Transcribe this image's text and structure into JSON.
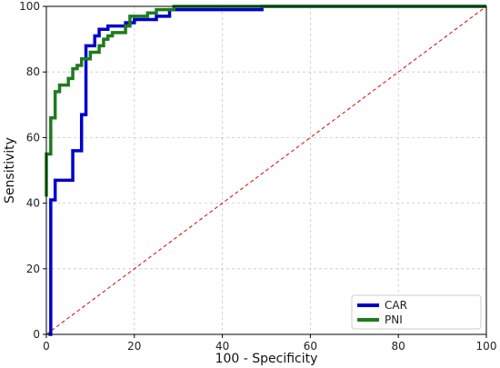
{
  "chart_data": {
    "type": "line",
    "title": "",
    "xlabel": "100 - Specificity",
    "ylabel": "Sensitivity",
    "xlim": [
      0,
      100
    ],
    "ylim": [
      0,
      100
    ],
    "xticks": [
      0,
      20,
      40,
      60,
      80,
      100
    ],
    "yticks": [
      0,
      20,
      40,
      60,
      80,
      100
    ],
    "grid": true,
    "legend_position": "bottom-right",
    "series": [
      {
        "name": "CAR",
        "color": "#0000cc",
        "step": true,
        "points": [
          [
            0.5,
            0
          ],
          [
            1,
            0
          ],
          [
            1,
            41
          ],
          [
            2,
            41
          ],
          [
            2,
            47
          ],
          [
            6,
            47
          ],
          [
            6,
            56
          ],
          [
            8,
            56
          ],
          [
            8,
            67
          ],
          [
            9,
            67
          ],
          [
            9,
            88
          ],
          [
            11,
            88
          ],
          [
            11,
            91
          ],
          [
            12,
            91
          ],
          [
            12,
            93
          ],
          [
            14,
            93
          ],
          [
            14,
            94
          ],
          [
            18,
            94
          ],
          [
            18,
            95
          ],
          [
            20,
            95
          ],
          [
            20,
            96
          ],
          [
            25,
            96
          ],
          [
            25,
            97
          ],
          [
            28,
            97
          ],
          [
            28,
            99
          ],
          [
            49,
            99
          ],
          [
            49,
            100
          ],
          [
            100,
            100
          ]
        ]
      },
      {
        "name": "PNI",
        "color": "#1e7b1e",
        "step": true,
        "points": [
          [
            0,
            42
          ],
          [
            0,
            55
          ],
          [
            1,
            55
          ],
          [
            1,
            66
          ],
          [
            2,
            66
          ],
          [
            2,
            74
          ],
          [
            3,
            74
          ],
          [
            3,
            76
          ],
          [
            5,
            76
          ],
          [
            5,
            78
          ],
          [
            6,
            78
          ],
          [
            6,
            81
          ],
          [
            7,
            81
          ],
          [
            7,
            82
          ],
          [
            8,
            82
          ],
          [
            8,
            84
          ],
          [
            9,
            84
          ],
          [
            10,
            84
          ],
          [
            10,
            86
          ],
          [
            12,
            86
          ],
          [
            12,
            88
          ],
          [
            13,
            88
          ],
          [
            13,
            90
          ],
          [
            14,
            90
          ],
          [
            14,
            91
          ],
          [
            15,
            91
          ],
          [
            15,
            92
          ],
          [
            18,
            92
          ],
          [
            18,
            94
          ],
          [
            19,
            94
          ],
          [
            19,
            97
          ],
          [
            23,
            97
          ],
          [
            23,
            98
          ],
          [
            25,
            98
          ],
          [
            25,
            99
          ],
          [
            29,
            99
          ],
          [
            29,
            100
          ],
          [
            100,
            100
          ]
        ]
      }
    ],
    "reference_line": {
      "points": [
        [
          0,
          0
        ],
        [
          100,
          100
        ]
      ],
      "color": "#dd0000",
      "style": "dashed"
    }
  }
}
